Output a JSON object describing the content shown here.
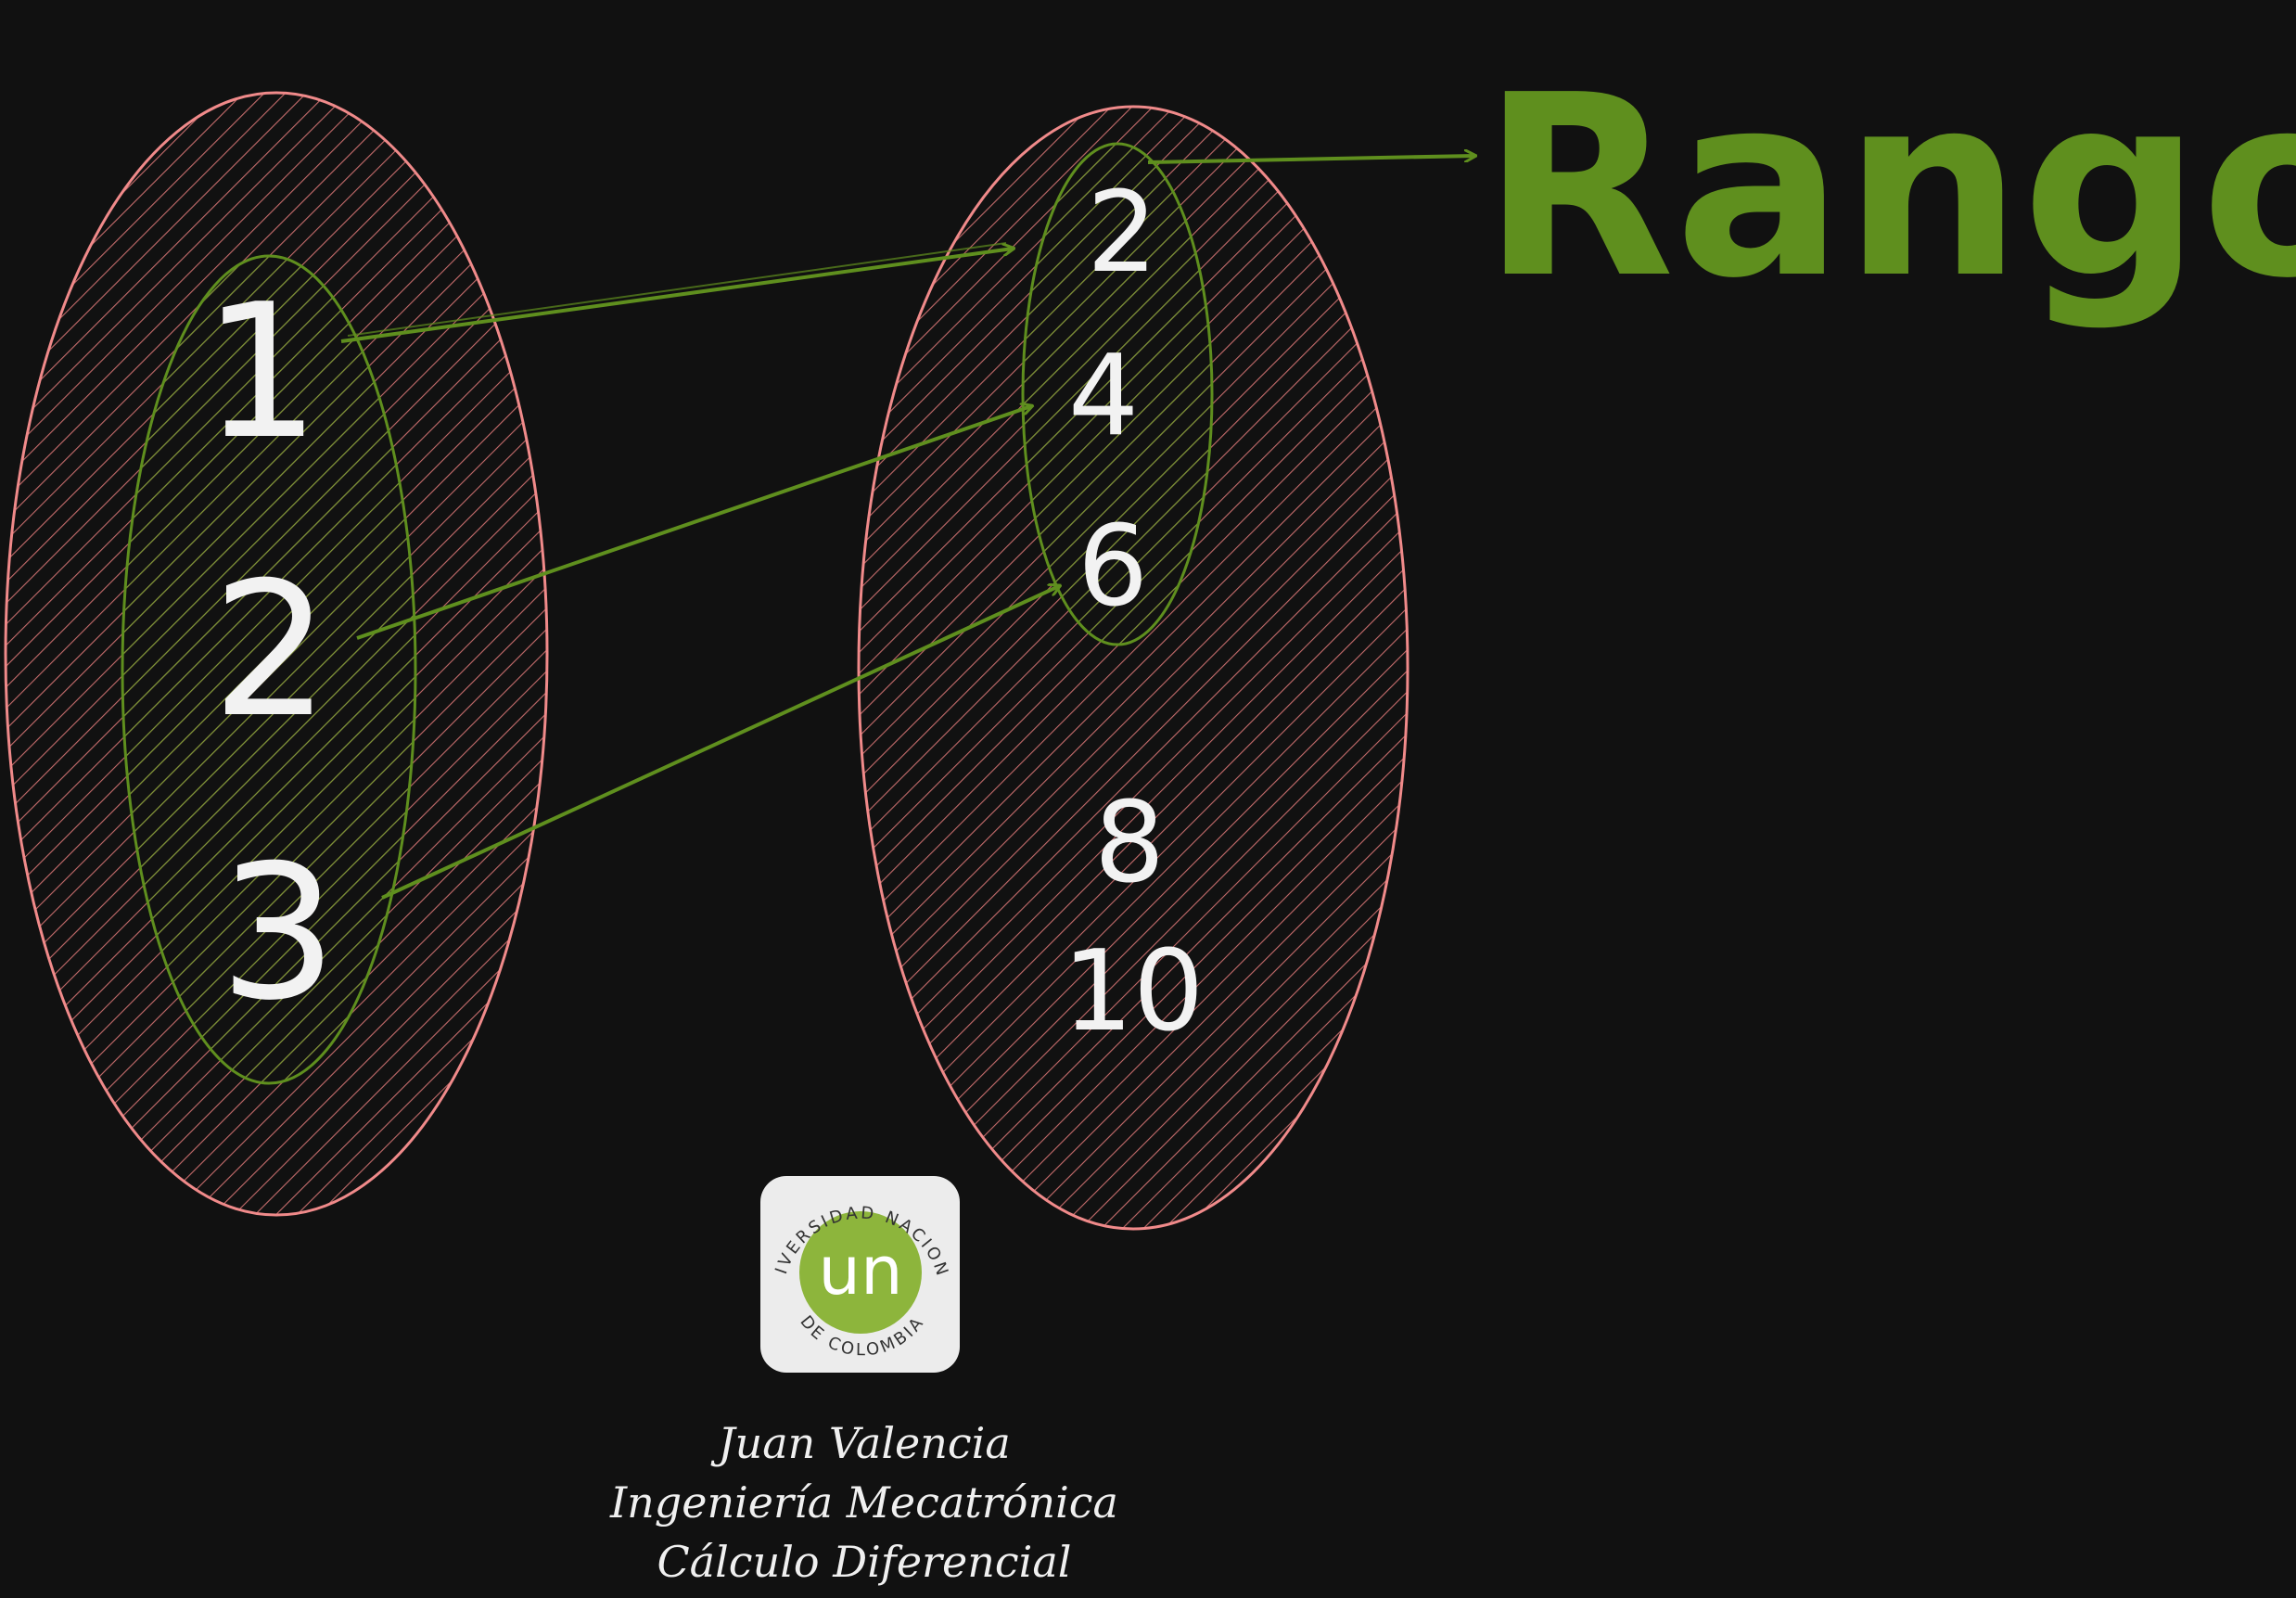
{
  "title": "Rango",
  "domain_set": {
    "elements": [
      "1",
      "2",
      "3"
    ]
  },
  "codomain_set": {
    "range_elements": [
      "2",
      "4",
      "6"
    ],
    "other_elements": [
      "8",
      "10"
    ]
  },
  "mappings": [
    {
      "from": "1",
      "to": "2"
    },
    {
      "from": "2",
      "to": "4"
    },
    {
      "from": "3",
      "to": "6"
    }
  ],
  "logo": {
    "monogram": "un",
    "ring_top": "UNIVERSIDAD NACIONAL",
    "ring_bottom": "DE COLOMBIA"
  },
  "credits": {
    "author": "Juan Valencia",
    "program": "Ingeniería Mecatrónica",
    "course": "Cálculo Diferencial"
  },
  "colors": {
    "background": "#111111",
    "set_outline": "#f08a8a",
    "set_hatch": "#e57b7b",
    "subset_outline": "#5f8f1e",
    "arrow": "#5f8f1e",
    "numbers": "#f2f2f2",
    "title": "#5f8f1e",
    "logo_green": "#8db53c",
    "logo_bg": "#ececec"
  }
}
